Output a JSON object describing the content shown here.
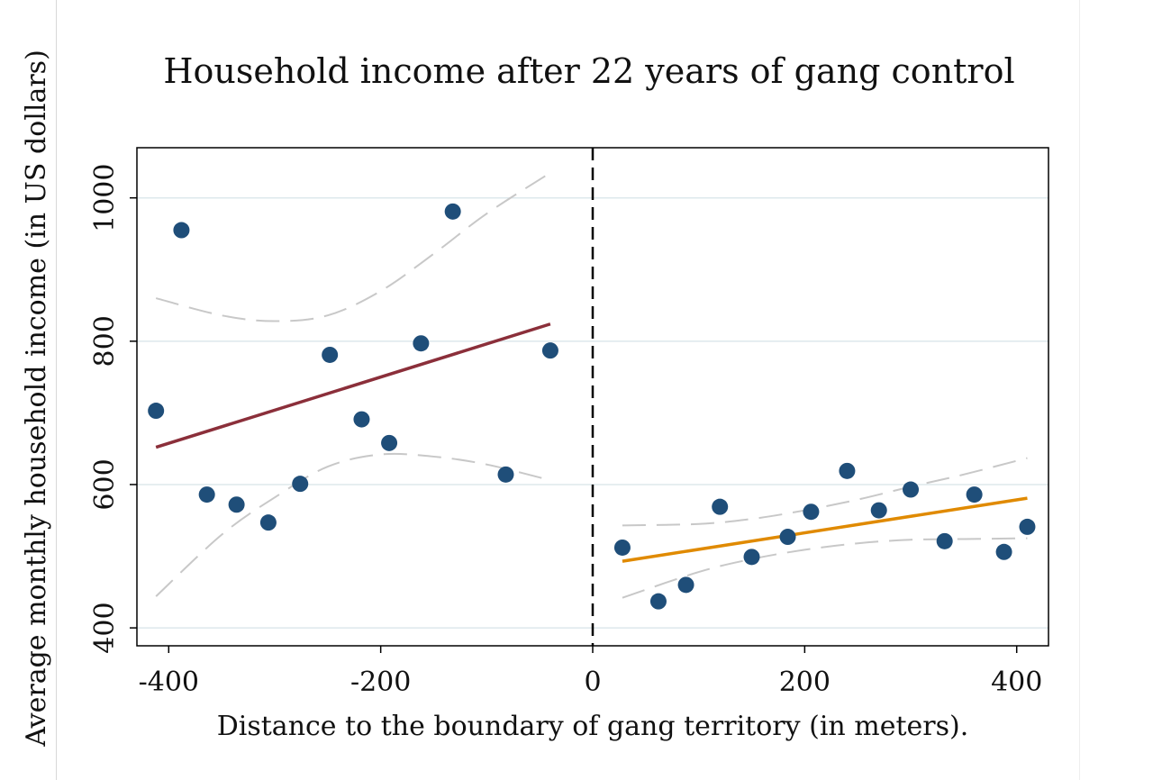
{
  "chart_data": {
    "type": "scatter",
    "title": "Household income after 22 years of gang control",
    "xlabel": "Distance to the boundary of gang territory (in meters).",
    "ylabel": "Average monthly household income (in US dollars)",
    "xlim": [
      -430,
      430
    ],
    "ylim": [
      375,
      1070
    ],
    "x_ticks": [
      -400,
      -200,
      0,
      200,
      400
    ],
    "x_tick_labels": [
      "-400",
      "-200",
      "0",
      "200",
      "400"
    ],
    "y_ticks": [
      400,
      600,
      800,
      1000
    ],
    "y_tick_labels": [
      "400",
      "600",
      "800",
      "1000"
    ],
    "grid": "horizontal",
    "cutoff": 0,
    "colors": {
      "points": "#1f4e79",
      "left_fit": "#8b2f3a",
      "right_fit": "#e08a00",
      "ci": "#c8c8c8",
      "grid": "#dde8ec",
      "cutoff": "#000000"
    },
    "series": [
      {
        "kind": "points",
        "x": [
          -412,
          -388,
          -364,
          -336,
          -306,
          -276,
          -248,
          -218,
          -192,
          -162,
          -132,
          -82,
          -40,
          28,
          62,
          88,
          120,
          150,
          184,
          206,
          240,
          270,
          300,
          332,
          360,
          388,
          410
        ],
        "y": [
          703,
          955,
          586,
          572,
          547,
          601,
          781,
          691,
          658,
          797,
          981,
          614,
          787,
          512,
          437,
          460,
          569,
          499,
          527,
          562,
          619,
          564,
          593,
          521,
          586,
          506,
          541
        ]
      },
      {
        "kind": "fit",
        "side": "left",
        "x": [
          -412,
          -40
        ],
        "y": [
          652,
          824
        ]
      },
      {
        "kind": "fit",
        "side": "right",
        "x": [
          28,
          410
        ],
        "y": [
          493,
          581
        ]
      },
      {
        "kind": "ci",
        "side": "left",
        "bound": "upper",
        "x": [
          -412,
          -350,
          -300,
          -250,
          -200,
          -150,
          -100,
          -40
        ],
        "y": [
          860,
          836,
          828,
          836,
          870,
          922,
          978,
          1035
        ]
      },
      {
        "kind": "ci",
        "side": "left",
        "bound": "lower",
        "x": [
          -412,
          -350,
          -300,
          -250,
          -200,
          -150,
          -100,
          -40
        ],
        "y": [
          444,
          530,
          582,
          625,
          642,
          639,
          628,
          606
        ]
      },
      {
        "kind": "ci",
        "side": "right",
        "bound": "upper",
        "x": [
          28,
          100,
          150,
          200,
          250,
          300,
          350,
          410
        ],
        "y": [
          543,
          545,
          552,
          564,
          579,
          597,
          614,
          637
        ]
      },
      {
        "kind": "ci",
        "side": "right",
        "bound": "lower",
        "x": [
          28,
          100,
          150,
          200,
          250,
          300,
          350,
          410
        ],
        "y": [
          442,
          478,
          496,
          509,
          518,
          523,
          524,
          525
        ]
      }
    ]
  }
}
